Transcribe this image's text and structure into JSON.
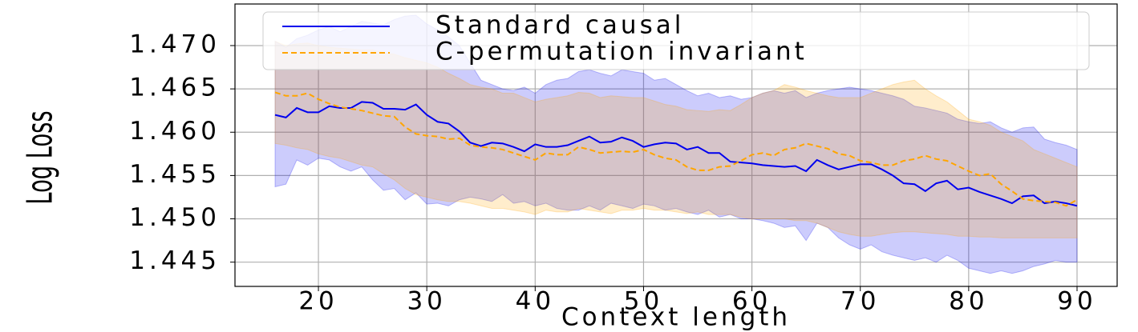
{
  "chart_data": {
    "type": "line",
    "xlabel": "Context length",
    "ylabel": "Log Loss",
    "x": [
      16,
      17,
      18,
      19,
      20,
      21,
      22,
      23,
      24,
      25,
      26,
      27,
      28,
      29,
      30,
      31,
      32,
      33,
      34,
      35,
      36,
      37,
      38,
      39,
      40,
      41,
      42,
      43,
      44,
      45,
      46,
      47,
      48,
      49,
      50,
      51,
      52,
      53,
      54,
      55,
      56,
      57,
      58,
      59,
      60,
      61,
      62,
      63,
      64,
      65,
      66,
      67,
      68,
      69,
      70,
      71,
      72,
      73,
      74,
      75,
      76,
      77,
      78,
      79,
      80,
      81,
      82,
      83,
      84,
      85,
      86,
      87,
      88,
      89,
      90
    ],
    "series": [
      {
        "name": "Standard causal",
        "color": "#0000ee",
        "linestyle": "solid",
        "values": [
          1.462,
          1.4617,
          1.4628,
          1.4623,
          1.4623,
          1.463,
          1.4628,
          1.4628,
          1.4635,
          1.4634,
          1.4627,
          1.4627,
          1.4626,
          1.4632,
          1.462,
          1.4612,
          1.461,
          1.4601,
          1.4588,
          1.4584,
          1.4588,
          1.4587,
          1.4583,
          1.4578,
          1.4586,
          1.4583,
          1.4583,
          1.4585,
          1.459,
          1.4595,
          1.4588,
          1.4589,
          1.4594,
          1.459,
          1.4583,
          1.4586,
          1.4588,
          1.4587,
          1.458,
          1.4583,
          1.4576,
          1.4576,
          1.4566,
          1.4565,
          1.4564,
          1.4562,
          1.4561,
          1.456,
          1.4561,
          1.4555,
          1.4568,
          1.4562,
          1.4557,
          1.456,
          1.4563,
          1.4563,
          1.4557,
          1.455,
          1.4541,
          1.454,
          1.4532,
          1.4541,
          1.4544,
          1.4534,
          1.4536,
          1.4531,
          1.4527,
          1.4523,
          1.4518,
          1.4526,
          1.4527,
          1.4518,
          1.452,
          1.4518,
          1.4515
        ],
        "upper": [
          1.4705,
          1.4698,
          1.4708,
          1.4712,
          1.4718,
          1.4722,
          1.4716,
          1.4722,
          1.4728,
          1.4726,
          1.4724,
          1.473,
          1.4734,
          1.4735,
          1.4725,
          1.4718,
          1.471,
          1.47,
          1.468,
          1.466,
          1.4655,
          1.465,
          1.4648,
          1.4652,
          1.4645,
          1.4655,
          1.466,
          1.4662,
          1.467,
          1.4672,
          1.4668,
          1.4665,
          1.4672,
          1.467,
          1.4668,
          1.466,
          1.4662,
          1.4655,
          1.4648,
          1.4642,
          1.4645,
          1.464,
          1.4642,
          1.4638,
          1.464,
          1.4645,
          1.4648,
          1.4645,
          1.4648,
          1.464,
          1.4645,
          1.4648,
          1.465,
          1.4652,
          1.465,
          1.4648,
          1.4645,
          1.4642,
          1.4638,
          1.463,
          1.4628,
          1.4625,
          1.4622,
          1.4615,
          1.4612,
          1.461,
          1.4612,
          1.4605,
          1.46,
          1.4605,
          1.4606,
          1.4592,
          1.4588,
          1.4585,
          1.458
        ],
        "lower": [
          1.4537,
          1.454,
          1.4568,
          1.4562,
          1.457,
          1.4568,
          1.456,
          1.4555,
          1.456,
          1.4545,
          1.4533,
          1.4535,
          1.4522,
          1.453,
          1.4517,
          1.4518,
          1.4515,
          1.4522,
          1.4525,
          1.4523,
          1.452,
          1.4528,
          1.4518,
          1.452,
          1.4515,
          1.4518,
          1.4512,
          1.451,
          1.451,
          1.4515,
          1.451,
          1.4518,
          1.4515,
          1.4512,
          1.4517,
          1.4515,
          1.451,
          1.4512,
          1.4508,
          1.4505,
          1.451,
          1.4502,
          1.4505,
          1.45,
          1.45,
          1.4498,
          1.4495,
          1.449,
          1.4492,
          1.4475,
          1.4495,
          1.449,
          1.4478,
          1.447,
          1.4465,
          1.447,
          1.4462,
          1.4458,
          1.4455,
          1.4452,
          1.4455,
          1.445,
          1.4458,
          1.4452,
          1.4443,
          1.444,
          1.4437,
          1.444,
          1.4437,
          1.444,
          1.4445,
          1.4448,
          1.4452,
          1.445,
          1.445
        ]
      },
      {
        "name": "C-permutation invariant",
        "color": "#ffa500",
        "linestyle": "dashed",
        "values": [
          1.4646,
          1.4642,
          1.4642,
          1.4645,
          1.4638,
          1.4633,
          1.4629,
          1.4627,
          1.4625,
          1.4622,
          1.4619,
          1.4618,
          1.4606,
          1.4598,
          1.4596,
          1.4595,
          1.4592,
          1.4593,
          1.4585,
          1.4583,
          1.4582,
          1.458,
          1.4576,
          1.4572,
          1.4568,
          1.4576,
          1.4574,
          1.4574,
          1.4583,
          1.458,
          1.4576,
          1.4577,
          1.4578,
          1.4577,
          1.458,
          1.4574,
          1.457,
          1.4568,
          1.456,
          1.4556,
          1.4556,
          1.456,
          1.4561,
          1.4567,
          1.4574,
          1.4576,
          1.4573,
          1.458,
          1.4582,
          1.4587,
          1.4584,
          1.4581,
          1.4575,
          1.4573,
          1.4567,
          1.4565,
          1.4562,
          1.4562,
          1.4567,
          1.4569,
          1.4573,
          1.4569,
          1.4567,
          1.4561,
          1.4555,
          1.455,
          1.4552,
          1.454,
          1.4532,
          1.4523,
          1.4521,
          1.452,
          1.4519,
          1.4515,
          1.4522
        ],
        "upper": [
          1.4705,
          1.47,
          1.4702,
          1.4703,
          1.47,
          1.4698,
          1.4697,
          1.4696,
          1.4695,
          1.4695,
          1.4692,
          1.469,
          1.4686,
          1.4683,
          1.468,
          1.4675,
          1.4668,
          1.4662,
          1.4655,
          1.4652,
          1.465,
          1.4645,
          1.4645,
          1.464,
          1.4635,
          1.4638,
          1.464,
          1.4642,
          1.4646,
          1.4645,
          1.464,
          1.4642,
          1.4641,
          1.464,
          1.464,
          1.4636,
          1.4632,
          1.463,
          1.4626,
          1.4625,
          1.4624,
          1.4626,
          1.4625,
          1.4632,
          1.464,
          1.4645,
          1.4648,
          1.4655,
          1.4652,
          1.4648,
          1.4645,
          1.4642,
          1.464,
          1.464,
          1.464,
          1.4645,
          1.465,
          1.4655,
          1.4658,
          1.466,
          1.465,
          1.4642,
          1.4635,
          1.4625,
          1.4615,
          1.4612,
          1.4608,
          1.46,
          1.4595,
          1.459,
          1.458,
          1.4575,
          1.457,
          1.4565,
          1.456
        ],
        "lower": [
          1.4587,
          1.4585,
          1.4582,
          1.458,
          1.4575,
          1.4572,
          1.457,
          1.4566,
          1.4562,
          1.456,
          1.4552,
          1.4545,
          1.4535,
          1.4528,
          1.4525,
          1.4522,
          1.452,
          1.452,
          1.4518,
          1.4515,
          1.4512,
          1.4512,
          1.451,
          1.4508,
          1.4505,
          1.451,
          1.4508,
          1.4508,
          1.4512,
          1.451,
          1.4508,
          1.4506,
          1.451,
          1.451,
          1.4512,
          1.451,
          1.451,
          1.4508,
          1.4506,
          1.4508,
          1.4505,
          1.4505,
          1.4505,
          1.4502,
          1.45,
          1.45,
          1.45,
          1.45,
          1.4498,
          1.4498,
          1.4495,
          1.449,
          1.4485,
          1.4482,
          1.448,
          1.448,
          1.4482,
          1.4484,
          1.4485,
          1.4485,
          1.4484,
          1.4483,
          1.4482,
          1.448,
          1.448,
          1.4479,
          1.4479,
          1.4478,
          1.4478,
          1.4478,
          1.4478,
          1.4478,
          1.4478,
          1.4478,
          1.4478
        ]
      }
    ],
    "xlim": [
      12.3,
      93.7
    ],
    "ylim": [
      1.4422,
      1.4748
    ],
    "xticks": [
      20,
      30,
      40,
      50,
      60,
      70,
      80,
      90
    ],
    "yticks": [
      1.445,
      {
        "value": 1.45,
        "label": "1.450"
      },
      1.455,
      {
        "value": 1.46,
        "label": "1.460"
      },
      1.465,
      {
        "value": 1.47,
        "label": "1.470"
      }
    ],
    "grid": true,
    "legend": "upper center"
  }
}
